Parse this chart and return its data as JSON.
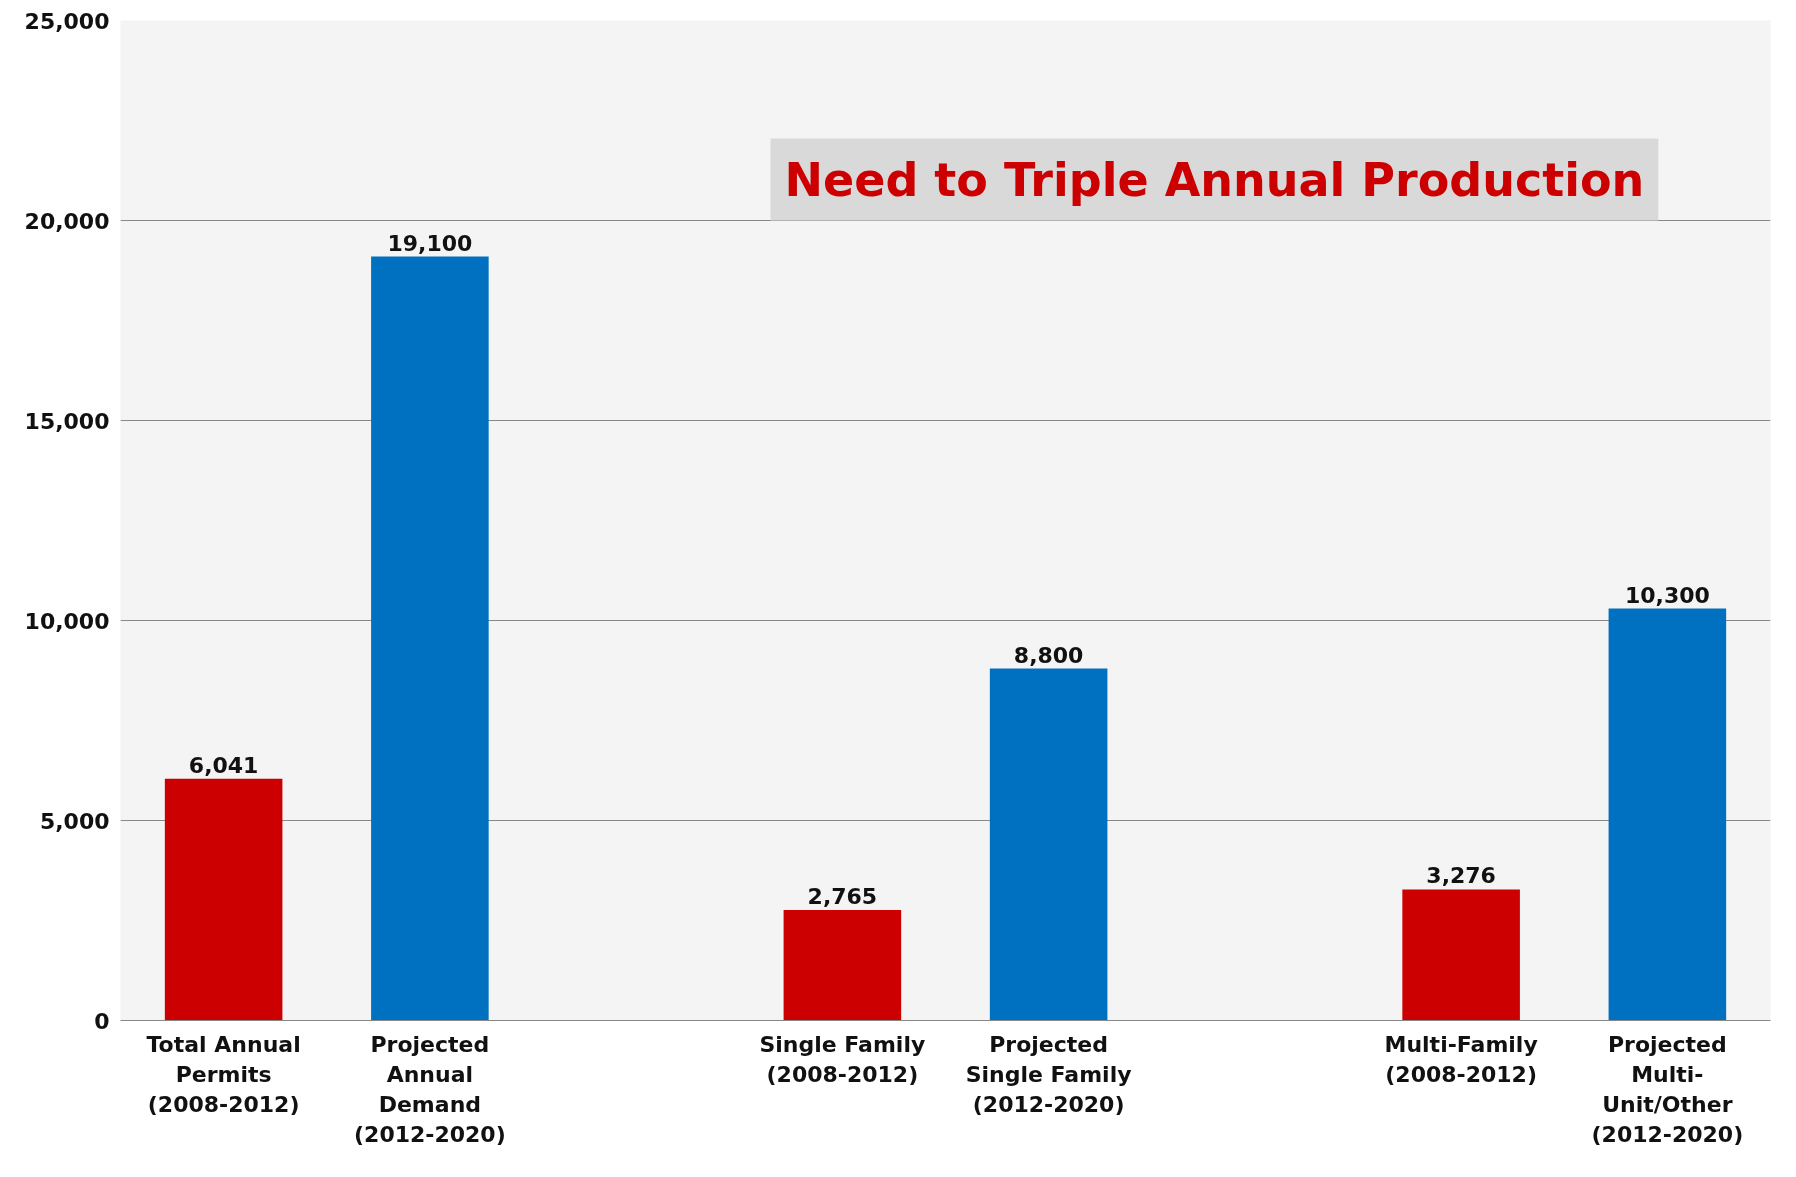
{
  "chart_data": {
    "type": "bar",
    "categories": [
      "Total Annual\nPermits\n(2008-2012)",
      "Projected\nAnnual\nDemand\n(2012-2020)",
      null,
      "Single Family\n(2008-2012)",
      "Projected\nSingle Family\n(2012-2020)",
      null,
      "Multi-Family\n(2008-2012)",
      "Projected\nMulti-\nUnit/Other\n(2012-2020)"
    ],
    "values": [
      6041,
      19100,
      null,
      2765,
      8800,
      null,
      3276,
      10300
    ],
    "colors": [
      "#cc0000",
      "#0070c0",
      null,
      "#cc0000",
      "#0070c0",
      null,
      "#cc0000",
      "#0070c0"
    ],
    "value_labels": [
      "6,041",
      "19,100",
      null,
      "2,765",
      "8,800",
      null,
      "3,276",
      "10,300"
    ],
    "ylim": [
      0,
      25000
    ],
    "yticks": [
      {
        "value": 0,
        "label": "0"
      },
      {
        "value": 5000,
        "label": "5,000"
      },
      {
        "value": 10000,
        "label": "10,000"
      },
      {
        "value": 15000,
        "label": "15,000"
      },
      {
        "value": 20000,
        "label": "20,000"
      },
      {
        "value": 25000,
        "label": "25,000"
      }
    ],
    "grid": "y",
    "annotations": [
      "Need to Triple Annual Production"
    ]
  }
}
